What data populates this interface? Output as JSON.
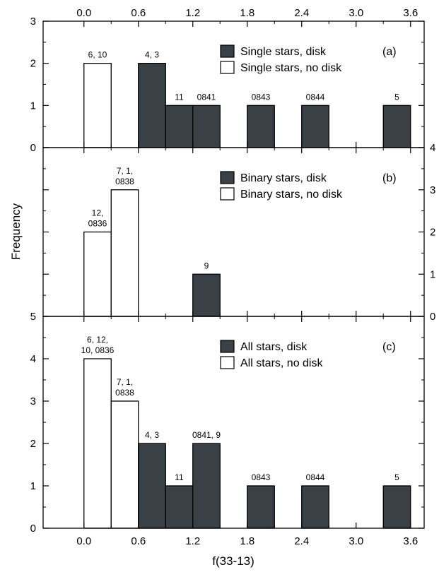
{
  "colors": {
    "disk": "#3a4146",
    "no_disk": "#ffffff",
    "edge": "#000000"
  },
  "chart_data": [
    {
      "type": "bar",
      "panel_label": "(a)",
      "xlabel": "f(33-13)",
      "ylabel": "Frequency",
      "xlim": [
        -0.45,
        3.75
      ],
      "xticks": [
        0.0,
        0.6,
        1.2,
        1.8,
        2.4,
        3.0,
        3.6
      ],
      "xtick_labels": [
        "0.0",
        "0.6",
        "1.2",
        "1.8",
        "2.4",
        "3.0",
        "3.6"
      ],
      "ylim": [
        0,
        3
      ],
      "yticks": [
        0,
        1,
        2,
        3
      ],
      "ytick_labels": [
        "0",
        "1",
        "2",
        "3"
      ],
      "ytick_side": "left",
      "legend": [
        {
          "label": "Single stars, disk",
          "series": "disk"
        },
        {
          "label": "Single stars, no disk",
          "series": "no_disk"
        }
      ],
      "bars": [
        {
          "x_start": 0.0,
          "x_end": 0.3,
          "value": 2,
          "series": "no_disk",
          "label": [
            "6, 10"
          ]
        },
        {
          "x_start": 0.6,
          "x_end": 0.9,
          "value": 2,
          "series": "disk",
          "label": [
            "4, 3"
          ]
        },
        {
          "x_start": 0.9,
          "x_end": 1.2,
          "value": 1,
          "series": "disk",
          "label": [
            "11"
          ]
        },
        {
          "x_start": 1.2,
          "x_end": 1.5,
          "value": 1,
          "series": "disk",
          "label": [
            "0841"
          ]
        },
        {
          "x_start": 1.8,
          "x_end": 2.1,
          "value": 1,
          "series": "disk",
          "label": [
            "0843"
          ]
        },
        {
          "x_start": 2.4,
          "x_end": 2.7,
          "value": 1,
          "series": "disk",
          "label": [
            "0844"
          ]
        },
        {
          "x_start": 3.3,
          "x_end": 3.6,
          "value": 1,
          "series": "disk",
          "label": [
            "5"
          ]
        }
      ]
    },
    {
      "type": "bar",
      "panel_label": "(b)",
      "xlim": [
        -0.45,
        3.75
      ],
      "ylim": [
        0,
        4
      ],
      "yticks": [
        0,
        1,
        2,
        3,
        4
      ],
      "ytick_labels": [
        "0",
        "1",
        "2",
        "3",
        "4"
      ],
      "ytick_side": "right",
      "legend": [
        {
          "label": "Binary stars, disk",
          "series": "disk"
        },
        {
          "label": "Binary stars, no disk",
          "series": "no_disk"
        }
      ],
      "bars": [
        {
          "x_start": 0.0,
          "x_end": 0.3,
          "value": 2,
          "series": "no_disk",
          "label": [
            "12,",
            "0836"
          ]
        },
        {
          "x_start": 0.3,
          "x_end": 0.6,
          "value": 3,
          "series": "no_disk",
          "label": [
            "7, 1,",
            "0838"
          ]
        },
        {
          "x_start": 1.2,
          "x_end": 1.5,
          "value": 1,
          "series": "disk",
          "label": [
            "9"
          ]
        }
      ]
    },
    {
      "type": "bar",
      "panel_label": "(c)",
      "xlim": [
        -0.45,
        3.75
      ],
      "ylim": [
        0,
        5
      ],
      "yticks": [
        0,
        1,
        2,
        3,
        4,
        5
      ],
      "ytick_labels": [
        "0",
        "1",
        "2",
        "3",
        "4",
        "5"
      ],
      "ytick_side": "left",
      "legend": [
        {
          "label": "All stars, disk",
          "series": "disk"
        },
        {
          "label": "All stars, no disk",
          "series": "no_disk"
        }
      ],
      "bars": [
        {
          "x_start": 0.0,
          "x_end": 0.3,
          "value": 4,
          "series": "no_disk",
          "label": [
            "6, 12,",
            "10, 0836"
          ]
        },
        {
          "x_start": 0.3,
          "x_end": 0.6,
          "value": 3,
          "series": "no_disk",
          "label": [
            "7, 1,",
            "0838"
          ]
        },
        {
          "x_start": 0.6,
          "x_end": 0.9,
          "value": 2,
          "series": "disk",
          "label": [
            "4, 3"
          ]
        },
        {
          "x_start": 0.9,
          "x_end": 1.2,
          "value": 1,
          "series": "disk",
          "label": [
            "11"
          ]
        },
        {
          "x_start": 1.2,
          "x_end": 1.5,
          "value": 2,
          "series": "disk",
          "label": [
            "0841, 9"
          ]
        },
        {
          "x_start": 1.8,
          "x_end": 2.1,
          "value": 1,
          "series": "disk",
          "label": [
            "0843"
          ]
        },
        {
          "x_start": 2.4,
          "x_end": 2.7,
          "value": 1,
          "series": "disk",
          "label": [
            "0844"
          ]
        },
        {
          "x_start": 3.3,
          "x_end": 3.6,
          "value": 1,
          "series": "disk",
          "label": [
            "5"
          ]
        }
      ]
    }
  ]
}
